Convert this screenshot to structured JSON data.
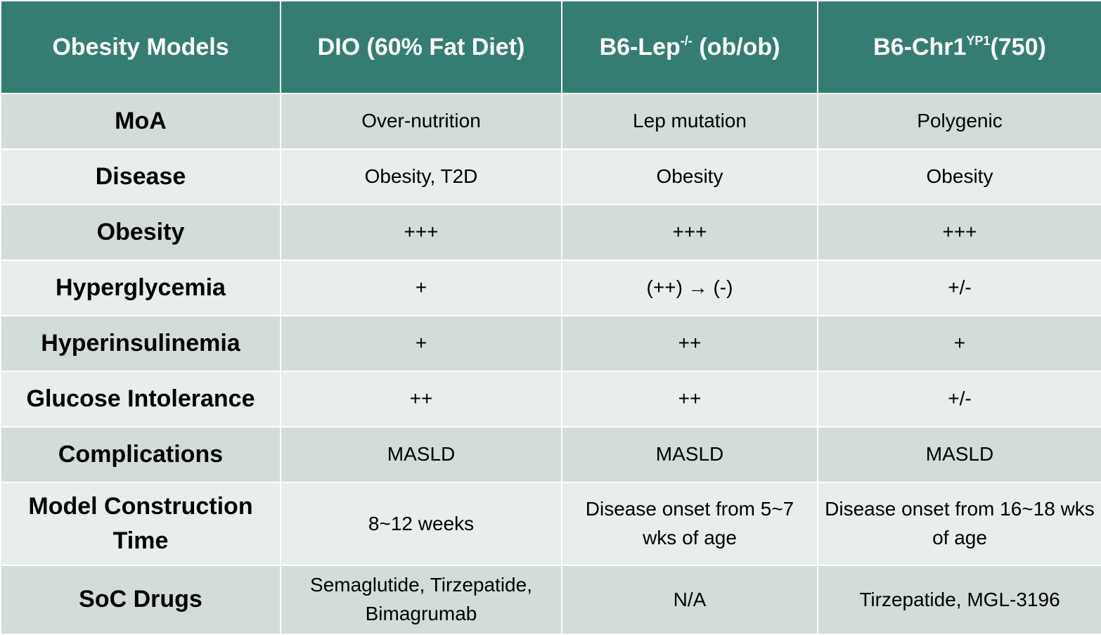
{
  "header": {
    "col1": "Obesity Models",
    "col2": "DIO (60% Fat Diet)",
    "col3": {
      "base": "B6-Lep",
      "sup": "-/-",
      "suffix": " (ob/ob)"
    },
    "col4": {
      "base": "B6-Chr1",
      "sup": "YP1",
      "suffix": "(750)"
    }
  },
  "rows": [
    {
      "label": "MoA",
      "values": [
        "Over-nutrition",
        "Lep mutation",
        "Polygenic"
      ]
    },
    {
      "label": "Disease",
      "values": [
        "Obesity, T2D",
        "Obesity",
        "Obesity"
      ]
    },
    {
      "label": "Obesity",
      "values": [
        "+++",
        "+++",
        "+++"
      ]
    },
    {
      "label": "Hyperglycemia",
      "values": [
        "+",
        "(++) → (-)",
        "+/-"
      ]
    },
    {
      "label": "Hyperinsulinemia",
      "values": [
        "+",
        "++",
        "+"
      ]
    },
    {
      "label": "Glucose Intolerance",
      "values": [
        "++",
        "++",
        "+/-"
      ]
    },
    {
      "label": "Complications",
      "values": [
        "MASLD",
        "MASLD",
        "MASLD"
      ]
    },
    {
      "label": "Model Construction Time",
      "values": [
        "8~12 weeks",
        "Disease onset from 5~7 wks of age",
        "Disease onset from 16~18 wks of age"
      ]
    },
    {
      "label": "SoC Drugs",
      "values": [
        "Semaglutide, Tirzepatide, Bimagrumab",
        "N/A",
        "Tirzepatide, MGL-3196"
      ]
    }
  ],
  "colors": {
    "header_bg": "#357d73",
    "row_shade": "#d2dcdb",
    "row_light": "#e8eded"
  }
}
